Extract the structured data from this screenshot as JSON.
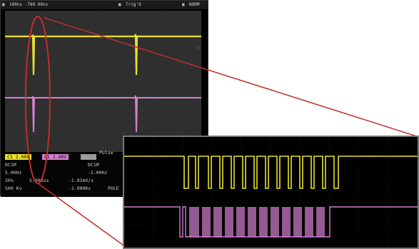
{
  "scope": {
    "header": {
      "time_base": "100ns  -780.00ns",
      "trigger": "Trig'd",
      "mode": "NORM"
    },
    "footer": {
      "ch1_scale": "C1 2.00V",
      "ch2_scale": "C2 2.00V",
      "trigger_type": "Pulse",
      "coupling1": "DC1M",
      "coupling2": "DC1M",
      "bw1": "5.00Hz",
      "bw2": "-1.00Hz",
      "row3_a": "20%",
      "row3_b": "5.000us",
      "row3_c": "-1.82mV/s",
      "row3_d": "500 Kv",
      "row3_e": "-1.000Ks",
      "row3_f": "POLE"
    },
    "ch1_color": "#e9e22a",
    "ch2_color": "#d580d0"
  },
  "zoom": {
    "ch1_color": "#e9e22a",
    "ch2_color": "#d580d0"
  },
  "callout_color": "#c0302a"
}
